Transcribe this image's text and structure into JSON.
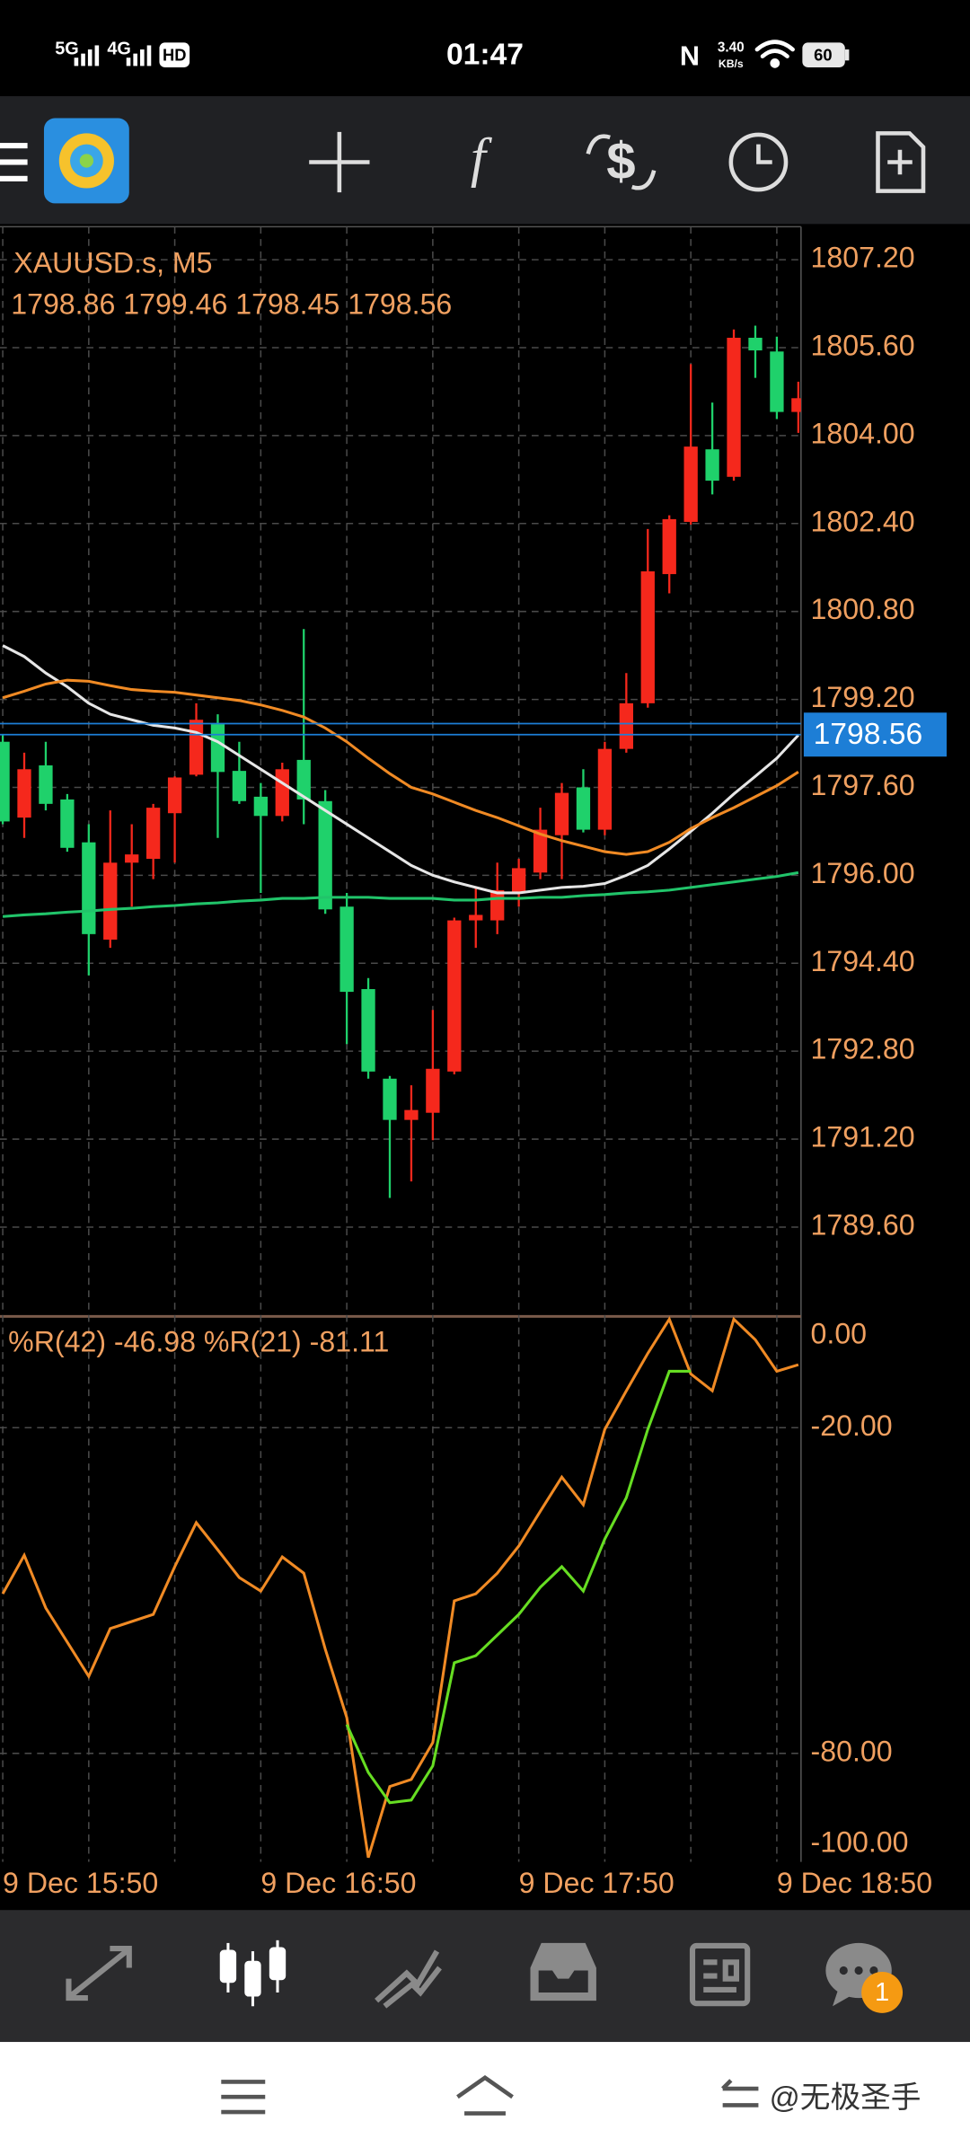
{
  "status_bar": {
    "sim1": "5G",
    "sim2": "4G",
    "hd": "HD",
    "time": "01:47",
    "nfc": "N",
    "speed": "3.40",
    "speed_unit": "KB/s",
    "battery": "60"
  },
  "toolbar": {
    "indicator_icon": "f",
    "trade_icon": "$"
  },
  "chart_data": [
    {
      "type": "candlestick",
      "title": "XAUUSD.s, M5",
      "subtitle": "1798.86 1799.46 1798.45 1798.56",
      "categories": [
        "9 Dec 15:50",
        null,
        null,
        null,
        null,
        null,
        null,
        null,
        null,
        null,
        null,
        null,
        "9 Dec 16:50",
        null,
        null,
        null,
        null,
        null,
        null,
        null,
        null,
        null,
        null,
        null,
        "9 Dec 17:50",
        null,
        null,
        null,
        null,
        null,
        null,
        null,
        null,
        null,
        null,
        null,
        "9 Dec 18:50",
        null
      ],
      "open": [
        1798.43,
        1797.05,
        1798.0,
        1797.38,
        1796.6,
        1794.83,
        1796.23,
        1796.3,
        1797.13,
        1797.83,
        1798.75,
        1797.9,
        1797.43,
        1797.08,
        1798.1,
        1797.35,
        1795.43,
        1793.93,
        1792.3,
        1791.55,
        1791.68,
        1792.43,
        1795.18,
        1795.18,
        1795.68,
        1796.05,
        1796.73,
        1797.6,
        1796.83,
        1798.3,
        1799.13,
        1801.48,
        1802.43,
        1803.75,
        1803.25,
        1805.78,
        1805.53,
        1804.43
      ],
      "high": [
        1798.55,
        1798.23,
        1798.43,
        1797.48,
        1796.93,
        1797.18,
        1796.93,
        1797.3,
        1797.8,
        1799.13,
        1798.93,
        1798.43,
        1797.68,
        1798.05,
        1800.48,
        1797.55,
        1795.68,
        1794.13,
        1792.35,
        1792.18,
        1793.55,
        1795.23,
        1795.8,
        1796.23,
        1796.3,
        1797.23,
        1797.68,
        1797.93,
        1798.43,
        1799.68,
        1802.3,
        1802.55,
        1805.3,
        1804.6,
        1805.93,
        1806.0,
        1805.8,
        1804.98
      ],
      "low": [
        1796.93,
        1796.68,
        1797.18,
        1796.43,
        1794.18,
        1794.68,
        1795.43,
        1795.93,
        1796.23,
        1797.8,
        1796.68,
        1797.3,
        1795.68,
        1796.98,
        1796.93,
        1795.3,
        1792.93,
        1792.3,
        1790.13,
        1790.43,
        1791.18,
        1792.38,
        1794.68,
        1794.93,
        1795.43,
        1795.93,
        1795.93,
        1796.78,
        1796.73,
        1798.23,
        1799.05,
        1801.13,
        1802.38,
        1802.93,
        1803.18,
        1805.05,
        1804.3,
        1804.05
      ],
      "close": [
        1796.98,
        1797.93,
        1797.3,
        1796.5,
        1794.93,
        1796.23,
        1796.38,
        1797.23,
        1797.78,
        1798.83,
        1797.88,
        1797.35,
        1797.08,
        1797.93,
        1797.38,
        1795.38,
        1793.88,
        1792.43,
        1791.55,
        1791.73,
        1792.48,
        1795.18,
        1795.28,
        1795.73,
        1796.13,
        1796.83,
        1797.5,
        1796.83,
        1798.3,
        1799.13,
        1801.53,
        1802.48,
        1803.8,
        1803.18,
        1805.78,
        1805.55,
        1804.43,
        1804.68
      ],
      "up_color": "#f5281c",
      "down_color": "#1fd16b",
      "series": [
        {
          "color": "#e6e6e6",
          "values": [
            1800.18,
            1799.98,
            1799.68,
            1799.43,
            1799.13,
            1798.93,
            1798.83,
            1798.73,
            1798.68,
            1798.6,
            1798.43,
            1798.18,
            1797.93,
            1797.68,
            1797.43,
            1797.18,
            1796.93,
            1796.68,
            1796.43,
            1796.18,
            1796.0,
            1795.88,
            1795.78,
            1795.68,
            1795.68,
            1795.73,
            1795.78,
            1795.8,
            1795.85,
            1796.0,
            1796.18,
            1796.48,
            1796.8,
            1797.13,
            1797.48,
            1797.8,
            1798.13,
            1798.55
          ]
        },
        {
          "color": "#f08a24",
          "values": [
            1799.23,
            1799.35,
            1799.48,
            1799.55,
            1799.53,
            1799.45,
            1799.38,
            1799.35,
            1799.33,
            1799.28,
            1799.23,
            1799.18,
            1799.1,
            1799.0,
            1798.88,
            1798.68,
            1798.43,
            1798.13,
            1797.85,
            1797.6,
            1797.48,
            1797.33,
            1797.18,
            1797.05,
            1796.9,
            1796.75,
            1796.63,
            1796.53,
            1796.43,
            1796.38,
            1796.43,
            1796.6,
            1796.85,
            1797.05,
            1797.23,
            1797.43,
            1797.63,
            1797.88
          ]
        },
        {
          "color": "#21c46a",
          "values": [
            1795.25,
            1795.28,
            1795.3,
            1795.33,
            1795.35,
            1795.38,
            1795.4,
            1795.43,
            1795.45,
            1795.48,
            1795.5,
            1795.53,
            1795.55,
            1795.58,
            1795.58,
            1795.6,
            1795.6,
            1795.6,
            1795.58,
            1795.58,
            1795.58,
            1795.55,
            1795.55,
            1795.58,
            1795.58,
            1795.6,
            1795.6,
            1795.63,
            1795.65,
            1795.68,
            1795.7,
            1795.73,
            1795.78,
            1795.83,
            1795.88,
            1795.93,
            1795.98,
            1796.05
          ]
        }
      ],
      "bid": 1798.56,
      "ask": 1798.76,
      "bid_color": "#1d7ed6",
      "ylim": [
        1788.0,
        1807.8
      ],
      "yticks": [
        {
          "value": 1807.2,
          "label": "1807.20"
        },
        {
          "value": 1805.6,
          "label": "1805.60"
        },
        {
          "value": 1804.0,
          "label": "1804.00"
        },
        {
          "value": 1802.4,
          "label": "1802.40"
        },
        {
          "value": 1800.8,
          "label": "1800.80"
        },
        {
          "value": 1799.2,
          "label": "1799.20"
        },
        {
          "value": 1797.6,
          "label": "1797.60"
        },
        {
          "value": 1796.0,
          "label": "1796.00"
        },
        {
          "value": 1794.4,
          "label": "1794.40"
        },
        {
          "value": 1792.8,
          "label": "1792.80"
        },
        {
          "value": 1791.2,
          "label": "1791.20"
        },
        {
          "value": 1789.6,
          "label": "1789.60"
        }
      ],
      "grid": true
    },
    {
      "type": "line",
      "title": "%R(42) -46.98 %R(21) -81.11",
      "series": [
        {
          "color": "#f08a24",
          "values": [
            -50.6,
            -43.5,
            -53.2,
            -59.5,
            -65.8,
            -57.0,
            -55.7,
            -54.4,
            -45.6,
            -37.5,
            -42.5,
            -47.6,
            -50.1,
            -43.8,
            -46.8,
            -60.8,
            -73.4,
            -99.2,
            -86.1,
            -84.8,
            -78.0,
            -51.9,
            -50.6,
            -46.8,
            -41.8,
            -35.4,
            -29.1,
            -34.2,
            -20.3,
            -13.2,
            -6.3,
            0,
            -10.1,
            -13.2,
            0,
            -3.8,
            -9.6,
            -8.4
          ]
        },
        {
          "color": "#66dd22",
          "values": [
            null,
            null,
            null,
            null,
            null,
            null,
            null,
            null,
            null,
            null,
            null,
            null,
            null,
            null,
            null,
            null,
            -74.7,
            -83.5,
            -89.1,
            -88.6,
            -82.3,
            -63.3,
            -62.0,
            -58.2,
            -54.4,
            -49.4,
            -45.6,
            -50.1,
            -40.5,
            -32.9,
            -20.3,
            -9.6,
            -9.6,
            null,
            null,
            null,
            null,
            null
          ]
        }
      ],
      "ylim": [
        -100,
        0
      ],
      "yticks": [
        {
          "value": 0,
          "label": "0.00"
        },
        {
          "value": -20,
          "label": "-20.00"
        },
        {
          "value": -80,
          "label": "-80.00"
        },
        {
          "value": -100,
          "label": "-100.00"
        }
      ]
    }
  ],
  "tab_bar": {
    "badge": "1"
  },
  "watermark": "@无极圣手"
}
